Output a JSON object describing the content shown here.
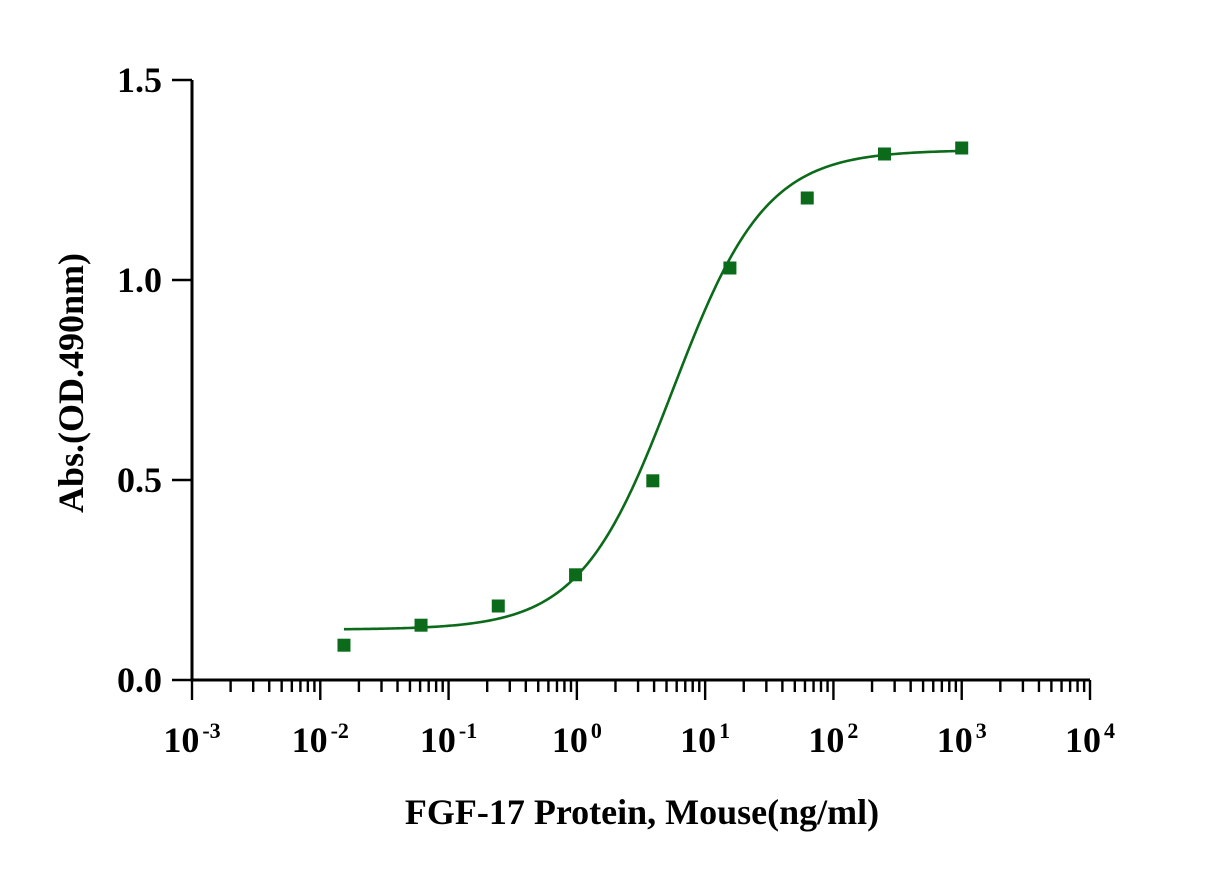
{
  "chart_data": {
    "type": "scatter",
    "title": "",
    "xlabel": "FGF-17 Protein, Mouse(ng/ml)",
    "ylabel": "Abs.(OD.490nm)",
    "xscale": "log",
    "xlim": [
      0.001,
      10000
    ],
    "ylim": [
      0,
      1.5
    ],
    "x_ticks": [
      {
        "base": "10",
        "exp": "-3"
      },
      {
        "base": "10",
        "exp": "-2"
      },
      {
        "base": "10",
        "exp": "-1"
      },
      {
        "base": "10",
        "exp": "0"
      },
      {
        "base": "10",
        "exp": "1"
      },
      {
        "base": "10",
        "exp": "2"
      },
      {
        "base": "10",
        "exp": "3"
      },
      {
        "base": "10",
        "exp": "4"
      }
    ],
    "y_ticks": [
      "0.0",
      "0.5",
      "1.0",
      "1.5"
    ],
    "grid": false,
    "series": [
      {
        "x": [
          0.0153,
          0.061,
          0.244,
          0.977,
          3.91,
          15.6,
          62.5,
          250,
          1000
        ],
        "y": [
          0.087,
          0.137,
          0.185,
          0.263,
          0.498,
          1.03,
          1.205,
          1.315,
          1.33
        ],
        "marker": "square",
        "color": "#0b6b1a"
      }
    ],
    "fit_curve": {
      "type": "4PL",
      "bottom": 0.126,
      "top": 1.325,
      "ec50": 5.6,
      "hill": 1.2,
      "x_range": [
        0.0153,
        1000
      ],
      "color": "#0b6b1a"
    }
  }
}
